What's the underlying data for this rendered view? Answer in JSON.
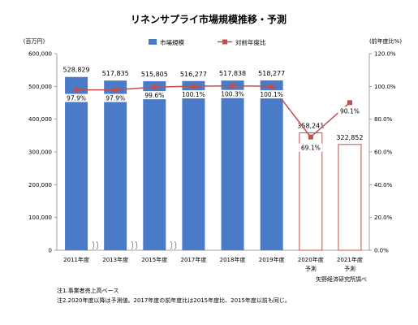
{
  "chart_data": {
    "type": "bar",
    "title": "リネンサプライ市場規模推移・予測",
    "left_axis_unit": "(百万円)",
    "right_axis_unit": "(前年度比%)",
    "categories": [
      [
        "2011年度"
      ],
      [
        "2013年度"
      ],
      [
        "2015年度"
      ],
      [
        "2017年度"
      ],
      [
        "2018年度"
      ],
      [
        "2019年度"
      ],
      [
        "2020年度",
        "予測"
      ],
      [
        "2021年度",
        "予測"
      ]
    ],
    "bar_series": {
      "name": "市場規模",
      "values": [
        528829,
        517835,
        515805,
        516277,
        517838,
        518277,
        358241,
        322852
      ],
      "value_labels": [
        "528,829",
        "517,835",
        "515,805",
        "516,277",
        "517,838",
        "518,277",
        "358,241",
        "322,852"
      ],
      "forecast": [
        false,
        false,
        false,
        false,
        false,
        false,
        true,
        true
      ]
    },
    "line_series": {
      "name": "対前年度比",
      "values": [
        97.9,
        97.9,
        99.6,
        100.1,
        100.3,
        100.1,
        69.1,
        90.1
      ],
      "value_labels": [
        "97.9%",
        "97.9%",
        "99.6%",
        "100.1%",
        "100.3%",
        "100.1%",
        "69.1%",
        "90.1%"
      ]
    },
    "left_ylim": [
      0,
      600000
    ],
    "left_ticks": [
      0,
      100000,
      200000,
      300000,
      400000,
      500000,
      600000
    ],
    "left_tick_labels": [
      "0",
      "100,000",
      "200,000",
      "300,000",
      "400,000",
      "500,000",
      "600,000"
    ],
    "right_ylim": [
      0,
      120
    ],
    "right_ticks": [
      0,
      20,
      40,
      60,
      80,
      100,
      120
    ],
    "right_tick_labels": [
      "0.0%",
      "20.0%",
      "40.0%",
      "60.0%",
      "80.0%",
      "100.0%",
      "120.0%"
    ],
    "axis_breaks_between": [
      0,
      1,
      2
    ],
    "legend_position": "top-center",
    "grid": false,
    "colors": {
      "bar": "#4a7bc8",
      "bar_forecast_edge": "#c0504d",
      "line": "#c0504d",
      "axis": "#888888",
      "text": "#000000"
    }
  },
  "source": "矢野経済研究所調べ",
  "notes": [
    "注1.事業者売上高ベース",
    "注2.2020年度以降は予測値。2017年度の前年度比は2015年度比、2015年度以前も同じ。"
  ]
}
